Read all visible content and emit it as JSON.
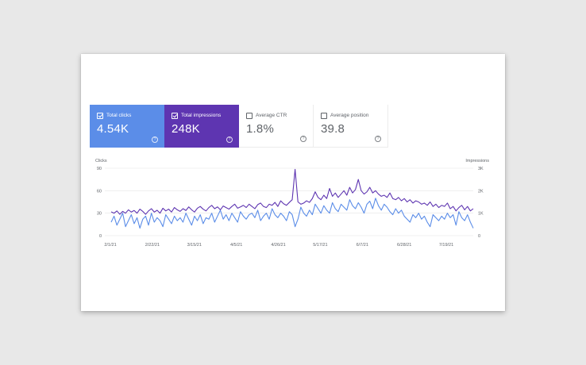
{
  "metrics": [
    {
      "label": "Total clicks",
      "value": "4.54K",
      "selected": true
    },
    {
      "label": "Total impressions",
      "value": "248K",
      "selected": true
    },
    {
      "label": "Average CTR",
      "value": "1.8%",
      "selected": false
    },
    {
      "label": "Average position",
      "value": "39.8",
      "selected": false
    }
  ],
  "help_glyph": "?",
  "colors": {
    "clicks": "#5b8de8",
    "impressions": "#5e35b1",
    "grid": "#e4e4e4"
  },
  "chart_data": {
    "type": "line",
    "x_labels": [
      "2/1/21",
      "2/22/21",
      "3/15/21",
      "4/5/21",
      "4/26/21",
      "5/17/21",
      "6/7/21",
      "6/28/21",
      "7/19/21"
    ],
    "y_left": {
      "label": "Clicks",
      "ticks": [
        "90",
        "60",
        "30",
        "0"
      ],
      "range": [
        0,
        90
      ]
    },
    "y_right": {
      "label": "Impressions",
      "ticks": [
        "3K",
        "2K",
        "1K",
        "0"
      ],
      "range": [
        0,
        3000
      ]
    },
    "grid": true,
    "series": [
      {
        "name": "Total clicks",
        "axis": "left",
        "values": [
          18,
          26,
          14,
          22,
          30,
          12,
          20,
          28,
          16,
          24,
          10,
          22,
          26,
          14,
          30,
          18,
          24,
          20,
          12,
          28,
          22,
          16,
          26,
          20,
          24,
          18,
          30,
          22,
          14,
          26,
          20,
          28,
          16,
          24,
          22,
          30,
          18,
          26,
          34,
          22,
          28,
          20,
          30,
          24,
          18,
          32,
          26,
          22,
          28,
          30,
          24,
          34,
          20,
          26,
          30,
          22,
          36,
          28,
          24,
          30,
          26,
          20,
          32,
          28,
          12,
          22,
          38,
          30,
          26,
          34,
          28,
          42,
          36,
          30,
          40,
          34,
          30,
          44,
          36,
          32,
          42,
          38,
          34,
          48,
          40,
          36,
          44,
          38,
          30,
          42,
          46,
          36,
          50,
          40,
          34,
          42,
          38,
          32,
          28,
          36,
          30,
          34,
          26,
          22,
          18,
          28,
          24,
          30,
          22,
          26,
          18,
          12,
          28,
          24,
          20,
          26,
          22,
          30,
          24,
          28,
          14,
          32,
          24,
          20,
          28,
          18,
          10
        ]
      },
      {
        "name": "Total impressions",
        "axis": "right",
        "values": [
          1060,
          1000,
          1100,
          950,
          1080,
          1000,
          1150,
          1050,
          1120,
          1000,
          1180,
          1080,
          950,
          1100,
          1200,
          1050,
          1130,
          1000,
          1220,
          1100,
          1180,
          1050,
          1250,
          1150,
          1080,
          1200,
          1120,
          1280,
          1150,
          1050,
          1220,
          1300,
          1180,
          1100,
          1250,
          1350,
          1200,
          1280,
          1150,
          1320,
          1250,
          1180,
          1300,
          1400,
          1220,
          1280,
          1350,
          1250,
          1400,
          1300,
          1200,
          1380,
          1450,
          1300,
          1250,
          1400,
          1350,
          1480,
          1300,
          1550,
          1420,
          1350,
          1480,
          1600,
          2950,
          1500,
          1400,
          1450,
          1550,
          1480,
          1650,
          1950,
          1700,
          1600,
          1800,
          1650,
          2100,
          1750,
          1900,
          1700,
          1850,
          2000,
          1800,
          2150,
          1900,
          2050,
          2500,
          2000,
          1850,
          1950,
          2150,
          1900,
          2000,
          1850,
          1750,
          1800,
          1700,
          1900,
          1650,
          1600,
          1700,
          1550,
          1650,
          1500,
          1600,
          1450,
          1550,
          1500,
          1400,
          1450,
          1350,
          1500,
          1300,
          1400,
          1250,
          1350,
          1300,
          1450,
          1200,
          1300,
          1100,
          1250,
          1350,
          1150,
          1300,
          1100,
          1200
        ]
      }
    ]
  }
}
